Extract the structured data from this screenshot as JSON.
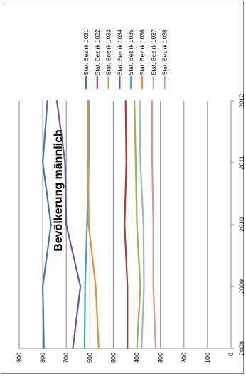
{
  "chart_data": {
    "type": "line",
    "orientation": "rotated-90-clockwise",
    "title": "Bevölkerung männlich",
    "x": [
      "2008",
      "2009",
      "2010",
      "2011",
      "2012"
    ],
    "ylim": [
      0,
      900
    ],
    "yticks": [
      0,
      100,
      200,
      300,
      400,
      500,
      600,
      700,
      800,
      900
    ],
    "grid": true,
    "legend_position": "right",
    "series": [
      {
        "name": "Stat. Bezirk 1031",
        "color": "#4472c4",
        "values": [
          795,
          800,
          765,
          800,
          780
        ]
      },
      {
        "name": "Stat. Bezirk 1032",
        "color": "#b03a3a",
        "values": [
          440,
          440,
          452,
          445,
          448
        ]
      },
      {
        "name": "Stat. Bezirk 1033",
        "color": "#92b64a",
        "values": [
          400,
          385,
          400,
          405,
          410
        ]
      },
      {
        "name": "Stat. Bezirk 1034",
        "color": "#7052a0",
        "values": [
          672,
          640,
          700,
          705,
          740
        ]
      },
      {
        "name": "Stat. Bezirk 1035",
        "color": "#3fa3c0",
        "values": [
          622,
          620,
          612,
          605,
          605
        ]
      },
      {
        "name": "Stat. Bezirk 1036",
        "color": "#f08c2e",
        "values": [
          562,
          575,
          605,
          608,
          608
        ]
      },
      {
        "name": "Stat. Bezirk 1037",
        "color": "#9eb2d8",
        "values": [
          380,
          370,
          372,
          385,
          388
        ]
      },
      {
        "name": "Stat. Bezirk 1038",
        "color": "#d99694",
        "values": [
          320,
          330,
          330,
          335,
          335
        ]
      }
    ]
  }
}
